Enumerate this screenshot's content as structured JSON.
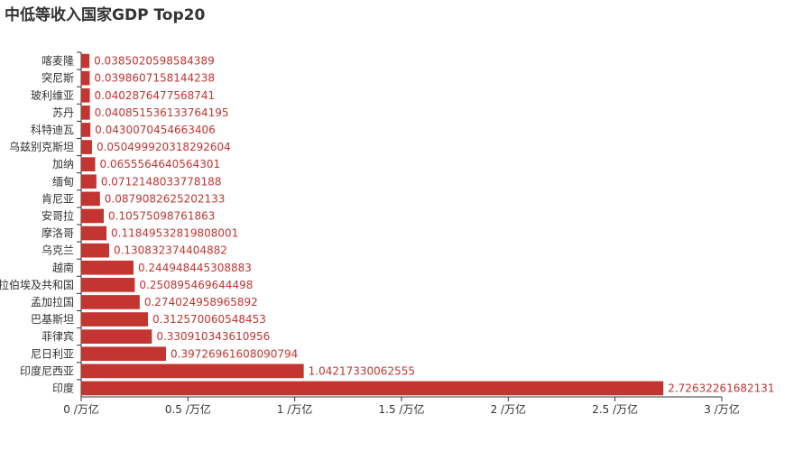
{
  "chart_data": {
    "type": "bar",
    "orientation": "horizontal",
    "title": "中低等收入国家GDP Top20",
    "categories": [
      "印度",
      "印度尼西亚",
      "尼日利亚",
      "菲律宾",
      "巴基斯坦",
      "孟加拉国",
      "阿拉伯埃及共和国",
      "越南",
      "乌克兰",
      "摩洛哥",
      "安哥拉",
      "肯尼亚",
      "缅甸",
      "加纳",
      "乌兹别克斯坦",
      "科特迪瓦",
      "苏丹",
      "玻利维亚",
      "突尼斯",
      "喀麦隆"
    ],
    "values": [
      2.72632261682131,
      1.04217330062555,
      0.39726961608090794,
      0.330910343610956,
      0.312570060548453,
      0.274024958965892,
      0.250895469644498,
      0.244948445308883,
      0.130832374404882,
      0.11849532819808001,
      0.10575098761863,
      0.0879082625202133,
      0.0712148033778188,
      0.0655564640564301,
      0.0504999203182926,
      0.0430070454663406,
      0.040851536133764195,
      0.0402876477568741,
      0.0398607158144238,
      0.0385020598584389
    ],
    "value_labels": [
      "2.72632261682131",
      "1.04217330062555",
      "0.39726961608090794",
      "0.330910343610956",
      "0.312570060548453",
      "0.274024958965892",
      "0.250895469644498",
      "0.244948445308883",
      "0.130832374404882",
      "0.11849532819808001",
      "0.10575098761863",
      "0.0879082625202133",
      "0.0712148033778188",
      "0.0655564640564301",
      "0.0504999203182926 04",
      "0.0430070454663406",
      "0.040851536133764195",
      "0.0402876477568741",
      "0.0398607158144238",
      "0.0385020598584389"
    ],
    "xlim": [
      0,
      3
    ],
    "xticks": [
      0,
      0.5,
      1,
      1.5,
      2,
      2.5,
      3
    ],
    "xtick_labels": [
      "0 /万亿",
      "0.5 /万亿",
      "1 /万亿",
      "1.5 /万亿",
      "2 /万亿",
      "2.5 /万亿",
      "3 /万亿"
    ],
    "bar_color": "#c23531",
    "grid": false,
    "legend": false
  }
}
